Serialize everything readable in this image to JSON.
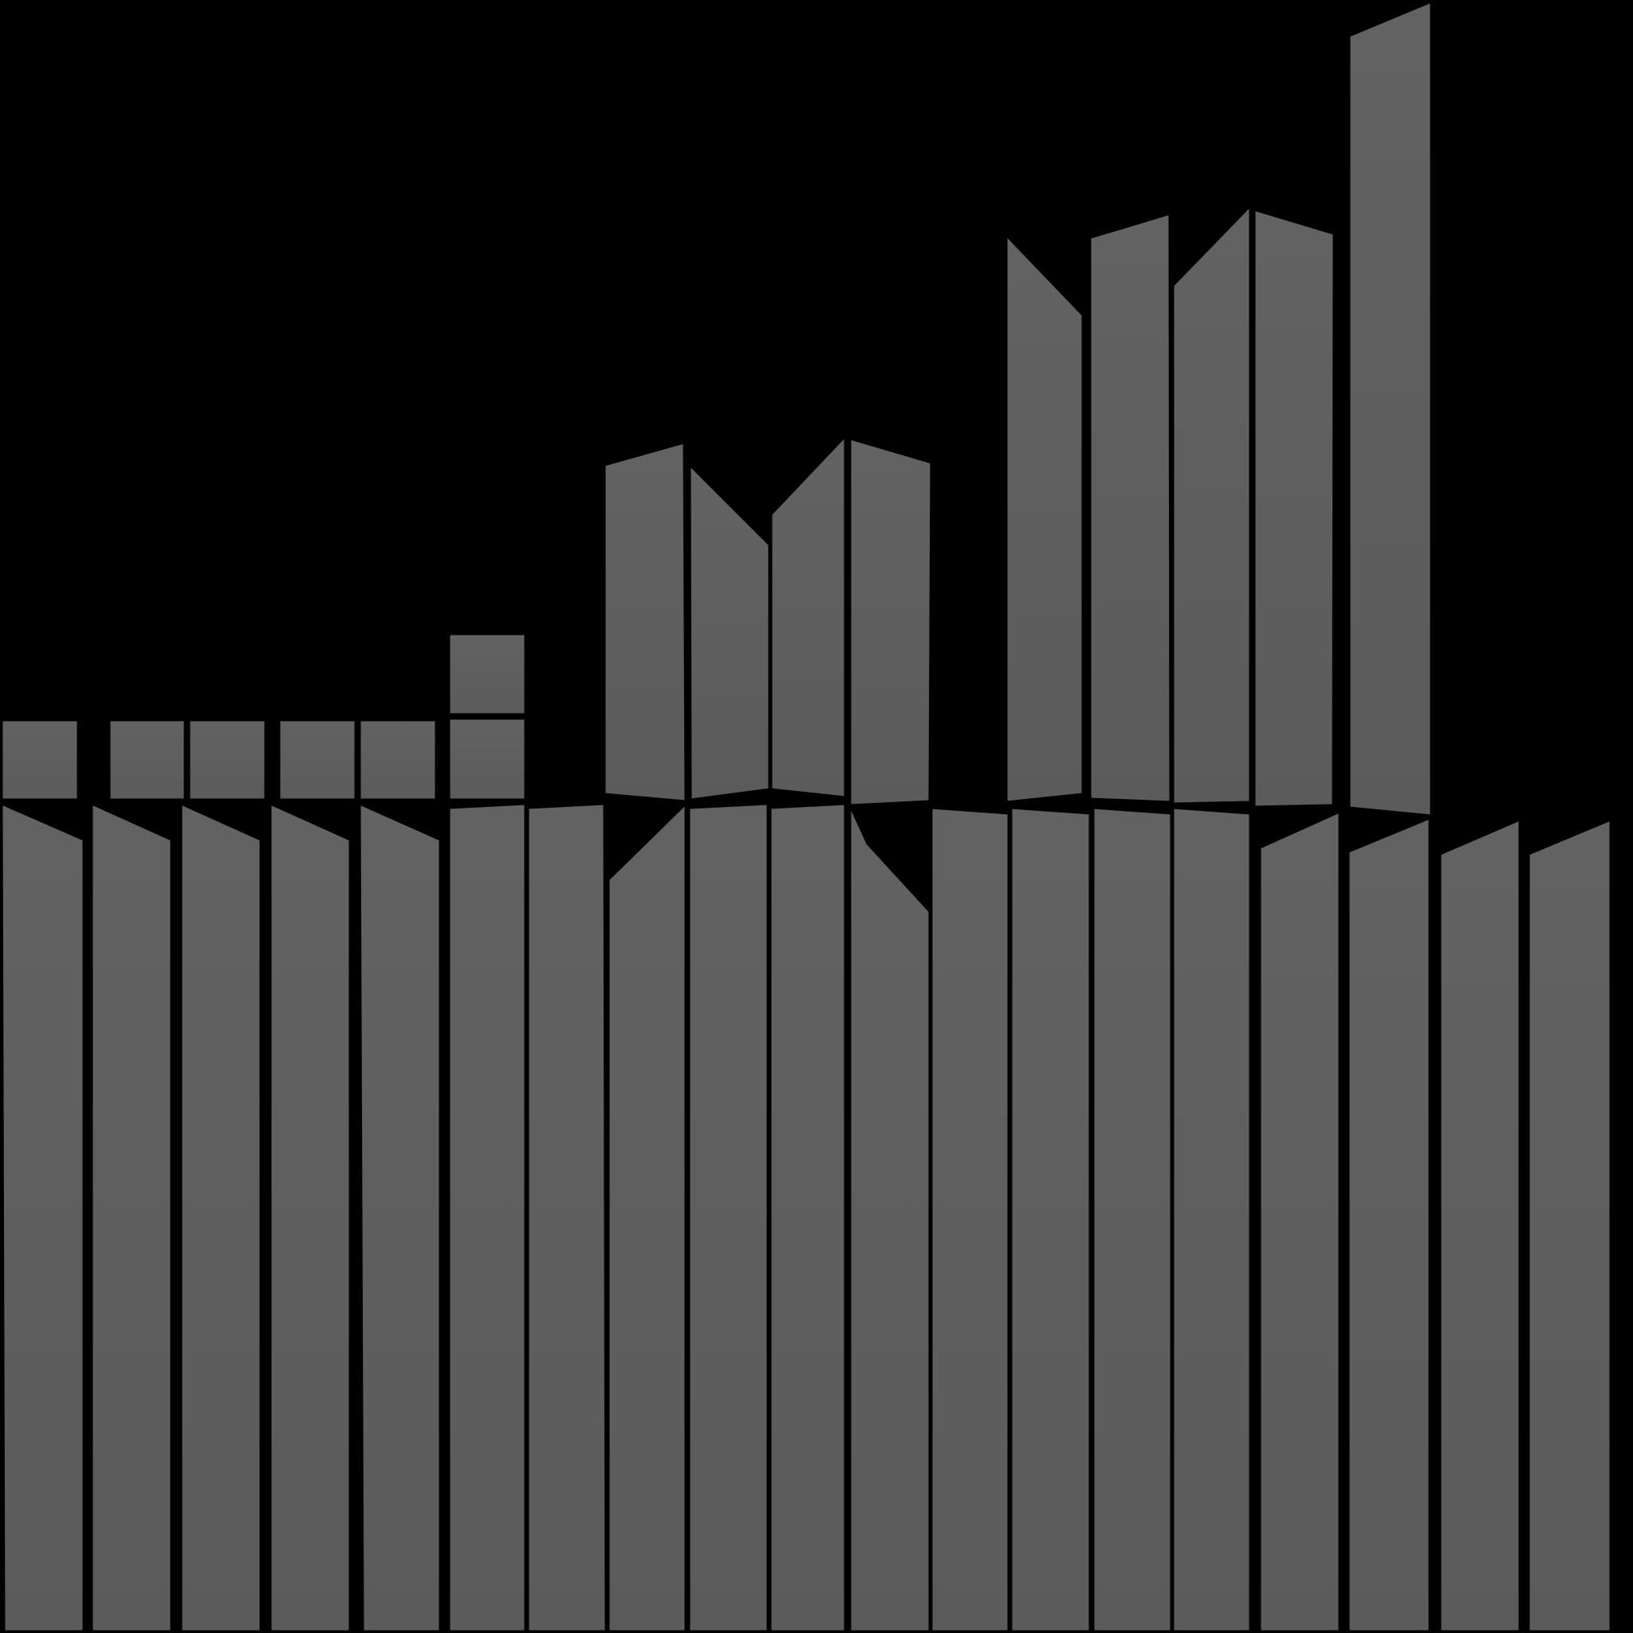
{
  "colors": {
    "background": "#000000",
    "panel_fill": "#5b5b5b",
    "panel_fill_light": "#626262",
    "panel_edge": "#000000"
  }
}
